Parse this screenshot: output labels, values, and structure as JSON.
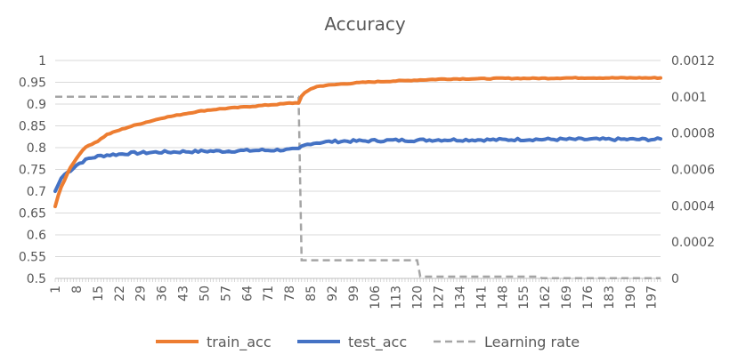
{
  "chart_data": {
    "type": "line",
    "title": "Accuracy",
    "xlabel": "",
    "ylabel": "",
    "y2label": "",
    "x_range": [
      1,
      200
    ],
    "ylim": [
      0.5,
      1.0
    ],
    "y2lim": [
      0,
      0.0012
    ],
    "y_ticks": [
      "0.5",
      "0.55",
      "0.6",
      "0.65",
      "0.7",
      "0.75",
      "0.8",
      "0.85",
      "0.9",
      "0.95",
      "1"
    ],
    "y2_ticks": [
      "0",
      "0.0002",
      "0.0004",
      "0.0006",
      "0.0008",
      "0.001",
      "0.0012"
    ],
    "x_ticks": [
      "1",
      "8",
      "15",
      "22",
      "29",
      "36",
      "43",
      "50",
      "57",
      "64",
      "71",
      "78",
      "85",
      "92",
      "99",
      "106",
      "113",
      "120",
      "127",
      "134",
      "141",
      "148",
      "155",
      "162",
      "169",
      "176",
      "183",
      "190",
      "197"
    ],
    "grid": "horizontal",
    "legend_position": "bottom",
    "series": [
      {
        "name": "train_acc",
        "axis": "left",
        "color": "#ed7d31",
        "points": [
          [
            1,
            0.665
          ],
          [
            2,
            0.69
          ],
          [
            3,
            0.71
          ],
          [
            4,
            0.725
          ],
          [
            5,
            0.74
          ],
          [
            6,
            0.755
          ],
          [
            7,
            0.765
          ],
          [
            8,
            0.775
          ],
          [
            9,
            0.785
          ],
          [
            10,
            0.795
          ],
          [
            12,
            0.805
          ],
          [
            15,
            0.815
          ],
          [
            18,
            0.83
          ],
          [
            22,
            0.84
          ],
          [
            25,
            0.847
          ],
          [
            29,
            0.855
          ],
          [
            33,
            0.862
          ],
          [
            36,
            0.868
          ],
          [
            40,
            0.873
          ],
          [
            43,
            0.877
          ],
          [
            47,
            0.882
          ],
          [
            50,
            0.885
          ],
          [
            54,
            0.888
          ],
          [
            57,
            0.89
          ],
          [
            61,
            0.892
          ],
          [
            64,
            0.894
          ],
          [
            68,
            0.896
          ],
          [
            71,
            0.898
          ],
          [
            75,
            0.9
          ],
          [
            78,
            0.902
          ],
          [
            81,
            0.903
          ],
          [
            82,
            0.918
          ],
          [
            83,
            0.925
          ],
          [
            85,
            0.935
          ],
          [
            87,
            0.94
          ],
          [
            90,
            0.943
          ],
          [
            92,
            0.944
          ],
          [
            95,
            0.946
          ],
          [
            99,
            0.948
          ],
          [
            103,
            0.95
          ],
          [
            106,
            0.951
          ],
          [
            110,
            0.952
          ],
          [
            113,
            0.953
          ],
          [
            117,
            0.954
          ],
          [
            120,
            0.955
          ],
          [
            124,
            0.956
          ],
          [
            127,
            0.957
          ],
          [
            134,
            0.958
          ],
          [
            141,
            0.958
          ],
          [
            148,
            0.959
          ],
          [
            155,
            0.959
          ],
          [
            162,
            0.959
          ],
          [
            169,
            0.96
          ],
          [
            176,
            0.96
          ],
          [
            183,
            0.96
          ],
          [
            190,
            0.96
          ],
          [
            197,
            0.96
          ],
          [
            200,
            0.96
          ]
        ],
        "jitter": 0.002
      },
      {
        "name": "test_acc",
        "axis": "left",
        "color": "#4472c4",
        "points": [
          [
            1,
            0.7
          ],
          [
            2,
            0.715
          ],
          [
            3,
            0.73
          ],
          [
            4,
            0.738
          ],
          [
            6,
            0.748
          ],
          [
            8,
            0.76
          ],
          [
            10,
            0.768
          ],
          [
            12,
            0.775
          ],
          [
            15,
            0.78
          ],
          [
            18,
            0.783
          ],
          [
            22,
            0.785
          ],
          [
            25,
            0.787
          ],
          [
            29,
            0.788
          ],
          [
            33,
            0.789
          ],
          [
            36,
            0.79
          ],
          [
            40,
            0.79
          ],
          [
            43,
            0.791
          ],
          [
            47,
            0.791
          ],
          [
            50,
            0.792
          ],
          [
            54,
            0.792
          ],
          [
            57,
            0.792
          ],
          [
            61,
            0.793
          ],
          [
            64,
            0.793
          ],
          [
            68,
            0.794
          ],
          [
            71,
            0.794
          ],
          [
            75,
            0.795
          ],
          [
            78,
            0.795
          ],
          [
            81,
            0.796
          ],
          [
            82,
            0.802
          ],
          [
            83,
            0.805
          ],
          [
            85,
            0.81
          ],
          [
            88,
            0.812
          ],
          [
            92,
            0.814
          ],
          [
            96,
            0.815
          ],
          [
            99,
            0.815
          ],
          [
            106,
            0.816
          ],
          [
            113,
            0.817
          ],
          [
            120,
            0.817
          ],
          [
            127,
            0.818
          ],
          [
            134,
            0.818
          ],
          [
            141,
            0.818
          ],
          [
            148,
            0.818
          ],
          [
            155,
            0.819
          ],
          [
            162,
            0.819
          ],
          [
            169,
            0.819
          ],
          [
            176,
            0.819
          ],
          [
            183,
            0.819
          ],
          [
            190,
            0.819
          ],
          [
            197,
            0.819
          ],
          [
            200,
            0.819
          ]
        ],
        "jitter": 0.006
      },
      {
        "name": "Learning rate",
        "axis": "right",
        "color": "#a5a5a5",
        "dashed": true,
        "points": [
          [
            1,
            0.001
          ],
          [
            81,
            0.001
          ],
          [
            82,
            0.0001
          ],
          [
            120,
            0.0001
          ],
          [
            121,
            1e-05
          ],
          [
            160,
            1e-05
          ],
          [
            161,
            1e-06
          ],
          [
            200,
            1e-06
          ]
        ]
      }
    ]
  }
}
